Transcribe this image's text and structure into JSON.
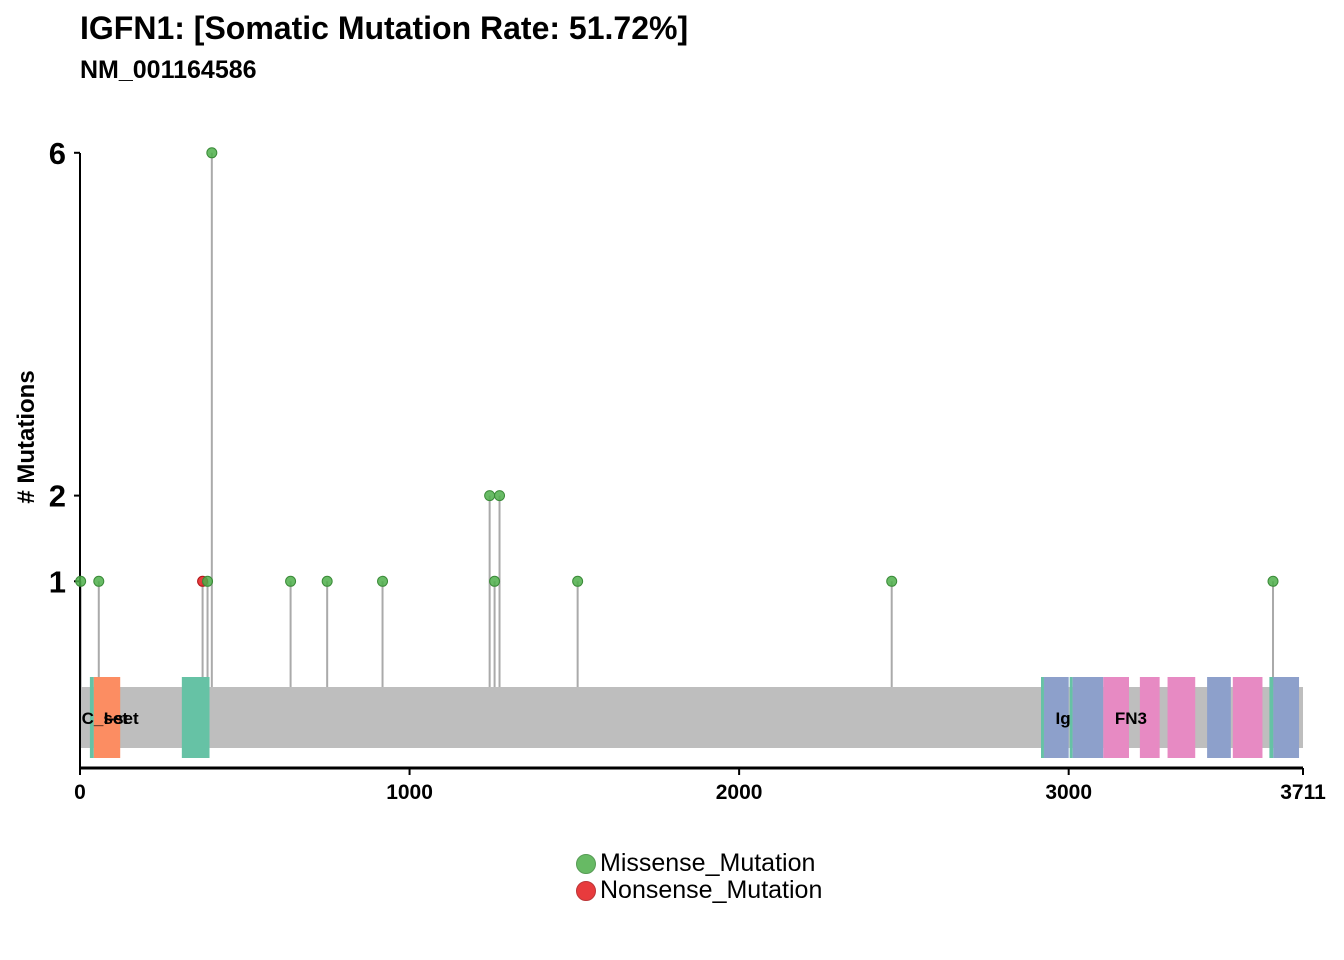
{
  "title": "IGFN1: [Somatic Mutation Rate: 51.72%]",
  "subtitle": "NM_001164586",
  "colors": {
    "Missense_Mutation": "#4daf4a",
    "Nonsense_Mutation": "#e41a1c",
    "backbone": "#bebebe",
    "stem": "#aaaaaa",
    "teal": "#66c2a5",
    "orange": "#fc8d62",
    "blue": "#8da0cb",
    "pink": "#e78ac3"
  },
  "legend": [
    {
      "label": "Missense_Mutation",
      "color": "#4daf4a"
    },
    {
      "label": "Nonsense_Mutation",
      "color": "#e41a1c"
    }
  ],
  "chart_data": {
    "type": "lollipop",
    "title": "IGFN1: [Somatic Mutation Rate: 51.72%]",
    "subtitle": "NM_001164586",
    "ylabel": "# Mutations",
    "xlabel": "",
    "xlim": [
      0,
      3711
    ],
    "ylim": [
      0,
      6
    ],
    "x_ticks": [
      0,
      1000,
      2000,
      3000,
      3711
    ],
    "y_ticks": [
      1,
      2,
      6
    ],
    "protein_length": 3711,
    "mutations": [
      {
        "position": 2,
        "count": 1,
        "type": "Missense_Mutation"
      },
      {
        "position": 57,
        "count": 1,
        "type": "Missense_Mutation"
      },
      {
        "position": 372,
        "count": 1,
        "type": "Nonsense_Mutation"
      },
      {
        "position": 387,
        "count": 1,
        "type": "Missense_Mutation"
      },
      {
        "position": 400,
        "count": 6,
        "type": "Missense_Mutation"
      },
      {
        "position": 639,
        "count": 1,
        "type": "Missense_Mutation"
      },
      {
        "position": 750,
        "count": 1,
        "type": "Missense_Mutation"
      },
      {
        "position": 918,
        "count": 1,
        "type": "Missense_Mutation"
      },
      {
        "position": 1243,
        "count": 2,
        "type": "Missense_Mutation"
      },
      {
        "position": 1258,
        "count": 1,
        "type": "Missense_Mutation"
      },
      {
        "position": 1273,
        "count": 2,
        "type": "Missense_Mutation"
      },
      {
        "position": 1510,
        "count": 1,
        "type": "Missense_Mutation"
      },
      {
        "position": 2463,
        "count": 1,
        "type": "Missense_Mutation"
      },
      {
        "position": 3620,
        "count": 1,
        "type": "Missense_Mutation"
      }
    ],
    "domains": [
      {
        "name": "C_set",
        "start": 30,
        "end": 42,
        "color": "#66c2a5"
      },
      {
        "name": "I-set",
        "start": 42,
        "end": 122,
        "color": "#fc8d62"
      },
      {
        "name": "",
        "start": 309,
        "end": 393,
        "color": "#66c2a5"
      },
      {
        "name": "",
        "start": 2916,
        "end": 2925,
        "color": "#66c2a5"
      },
      {
        "name": "Ig",
        "start": 2925,
        "end": 3000,
        "color": "#8da0cb"
      },
      {
        "name": "",
        "start": 3003,
        "end": 3012,
        "color": "#66c2a5"
      },
      {
        "name": "",
        "start": 3012,
        "end": 3105,
        "color": "#8da0cb"
      },
      {
        "name": "FN3",
        "start": 3105,
        "end": 3183,
        "color": "#e78ac3"
      },
      {
        "name": "",
        "start": 3216,
        "end": 3276,
        "color": "#e78ac3"
      },
      {
        "name": "",
        "start": 3300,
        "end": 3384,
        "color": "#e78ac3"
      },
      {
        "name": "",
        "start": 3420,
        "end": 3492,
        "color": "#8da0cb"
      },
      {
        "name": "",
        "start": 3498,
        "end": 3588,
        "color": "#e78ac3"
      },
      {
        "name": "",
        "start": 3609,
        "end": 3621,
        "color": "#66c2a5"
      },
      {
        "name": "",
        "start": 3621,
        "end": 3699,
        "color": "#8da0cb"
      }
    ],
    "domain_label_positions": {
      "C_set": 5,
      "I-set": 72,
      "Ig": 2960,
      "FN3": 3140
    }
  }
}
